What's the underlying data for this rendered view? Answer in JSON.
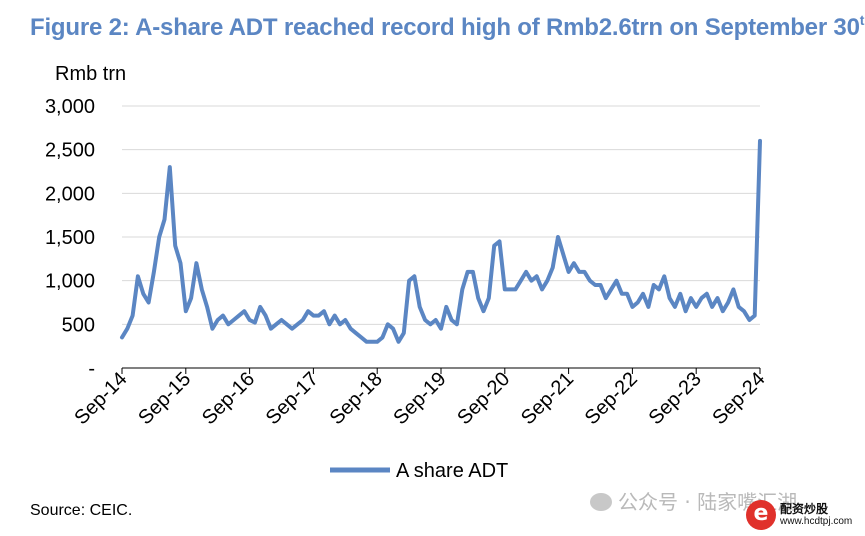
{
  "title": "Figure 2: A-share ADT reached record high of Rmb2.6trn on September 30",
  "title_sup": "th",
  "source": "Source: CEIC.",
  "watermark": "公众号 · 陆家嘴汇湖",
  "logo": {
    "name": "配资炒股",
    "url": "www.hcdtpj.com",
    "letter": "e"
  },
  "colors": {
    "title": "#5b86c3",
    "series": "#5b86c3",
    "grid": "#d9d9d9",
    "axis": "#000000"
  },
  "chart_data": {
    "type": "line",
    "ylabel": "Rmb trn",
    "ylim": [
      0,
      3000
    ],
    "yticks": [
      {
        "value": 3000,
        "label": "3,000"
      },
      {
        "value": 2500,
        "label": "2,500"
      },
      {
        "value": 2000,
        "label": "2,000"
      },
      {
        "value": 1500,
        "label": "1,500"
      },
      {
        "value": 1000,
        "label": "1,000"
      },
      {
        "value": 500,
        "label": "500"
      },
      {
        "value": 0,
        "label": "-"
      }
    ],
    "grid": true,
    "legend_position": "bottom-center",
    "xticks": [
      "Sep-14",
      "Sep-15",
      "Sep-16",
      "Sep-17",
      "Sep-18",
      "Sep-19",
      "Sep-20",
      "Sep-21",
      "Sep-22",
      "Sep-23",
      "Sep-24"
    ],
    "x_start": "2014-09",
    "x_end": "2024-09",
    "series": [
      {
        "name": "A share ADT",
        "x": [
          "2014-09",
          "2014-10",
          "2014-11",
          "2014-12",
          "2015-01",
          "2015-02",
          "2015-03",
          "2015-04",
          "2015-05",
          "2015-06",
          "2015-07",
          "2015-08",
          "2015-09",
          "2015-10",
          "2015-11",
          "2015-12",
          "2016-01",
          "2016-02",
          "2016-03",
          "2016-04",
          "2016-05",
          "2016-06",
          "2016-07",
          "2016-08",
          "2016-09",
          "2016-10",
          "2016-11",
          "2016-12",
          "2017-01",
          "2017-02",
          "2017-03",
          "2017-04",
          "2017-05",
          "2017-06",
          "2017-07",
          "2017-08",
          "2017-09",
          "2017-10",
          "2017-11",
          "2017-12",
          "2018-01",
          "2018-02",
          "2018-03",
          "2018-04",
          "2018-05",
          "2018-06",
          "2018-07",
          "2018-08",
          "2018-09",
          "2018-10",
          "2018-11",
          "2018-12",
          "2019-01",
          "2019-02",
          "2019-03",
          "2019-04",
          "2019-05",
          "2019-06",
          "2019-07",
          "2019-08",
          "2019-09",
          "2019-10",
          "2019-11",
          "2019-12",
          "2020-01",
          "2020-02",
          "2020-03",
          "2020-04",
          "2020-05",
          "2020-06",
          "2020-07",
          "2020-08",
          "2020-09",
          "2020-10",
          "2020-11",
          "2020-12",
          "2021-01",
          "2021-02",
          "2021-03",
          "2021-04",
          "2021-05",
          "2021-06",
          "2021-07",
          "2021-08",
          "2021-09",
          "2021-10",
          "2021-11",
          "2021-12",
          "2022-01",
          "2022-02",
          "2022-03",
          "2022-04",
          "2022-05",
          "2022-06",
          "2022-07",
          "2022-08",
          "2022-09",
          "2022-10",
          "2022-11",
          "2022-12",
          "2023-01",
          "2023-02",
          "2023-03",
          "2023-04",
          "2023-05",
          "2023-06",
          "2023-07",
          "2023-08",
          "2023-09",
          "2023-10",
          "2023-11",
          "2023-12",
          "2024-01",
          "2024-02",
          "2024-03",
          "2024-04",
          "2024-05",
          "2024-06",
          "2024-07",
          "2024-08",
          "2024-09"
        ],
        "values": [
          350,
          450,
          600,
          1050,
          850,
          750,
          1100,
          1500,
          1700,
          2300,
          1400,
          1200,
          650,
          800,
          1200,
          900,
          700,
          450,
          550,
          600,
          500,
          550,
          600,
          650,
          550,
          520,
          700,
          600,
          450,
          500,
          550,
          500,
          450,
          500,
          550,
          650,
          600,
          600,
          650,
          500,
          600,
          500,
          550,
          450,
          400,
          350,
          300,
          300,
          300,
          350,
          500,
          450,
          300,
          400,
          1000,
          1050,
          700,
          550,
          500,
          550,
          450,
          700,
          550,
          500,
          900,
          1100,
          1100,
          800,
          650,
          800,
          1400,
          1450,
          900,
          900,
          900,
          1000,
          1100,
          1000,
          1050,
          900,
          1000,
          1150,
          1500,
          1300,
          1100,
          1200,
          1100,
          1100,
          1000,
          950,
          950,
          800,
          900,
          1000,
          850,
          850,
          700,
          750,
          850,
          700,
          950,
          900,
          1050,
          800,
          700,
          850,
          650,
          800,
          700,
          800,
          850,
          700,
          800,
          650,
          750,
          900,
          700,
          650,
          550,
          600,
          2600
        ]
      }
    ]
  }
}
